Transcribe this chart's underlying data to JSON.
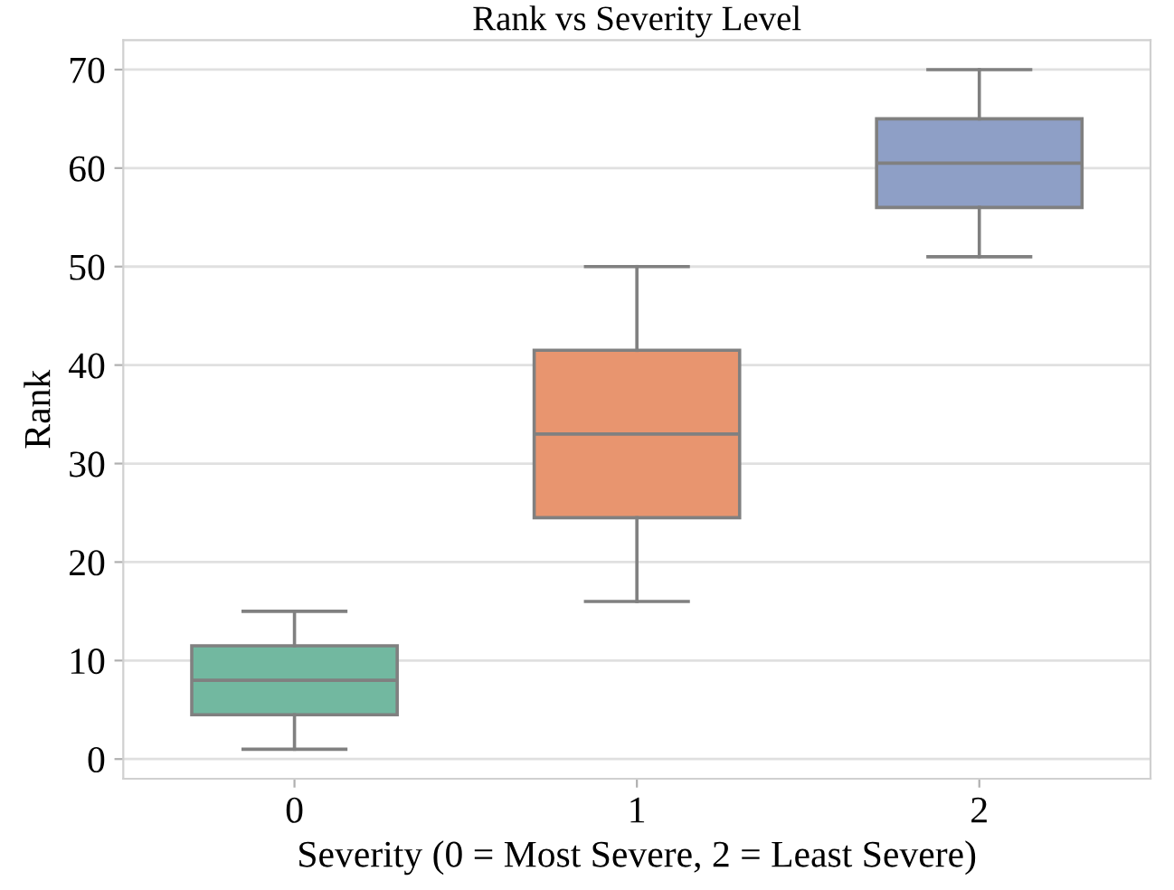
{
  "chart_data": {
    "type": "box",
    "title": "Rank vs Severity Level",
    "xlabel": "Severity (0 = Most Severe, 2 = Least Severe)",
    "ylabel": "Rank",
    "categories": [
      "0",
      "1",
      "2"
    ],
    "colors": [
      "#72b8a0",
      "#e8956f",
      "#8e9fc6"
    ],
    "boxes": [
      {
        "low": 1,
        "q1": 4.5,
        "median": 8,
        "q3": 11.5,
        "high": 15
      },
      {
        "low": 16,
        "q1": 24.5,
        "median": 33,
        "q3": 41.5,
        "high": 50
      },
      {
        "low": 51,
        "q1": 56,
        "median": 60.5,
        "q3": 65,
        "high": 70
      }
    ],
    "ylim": [
      -2,
      73
    ],
    "yticks": [
      0,
      10,
      20,
      30,
      40,
      50,
      60,
      70
    ],
    "grid": "y"
  }
}
